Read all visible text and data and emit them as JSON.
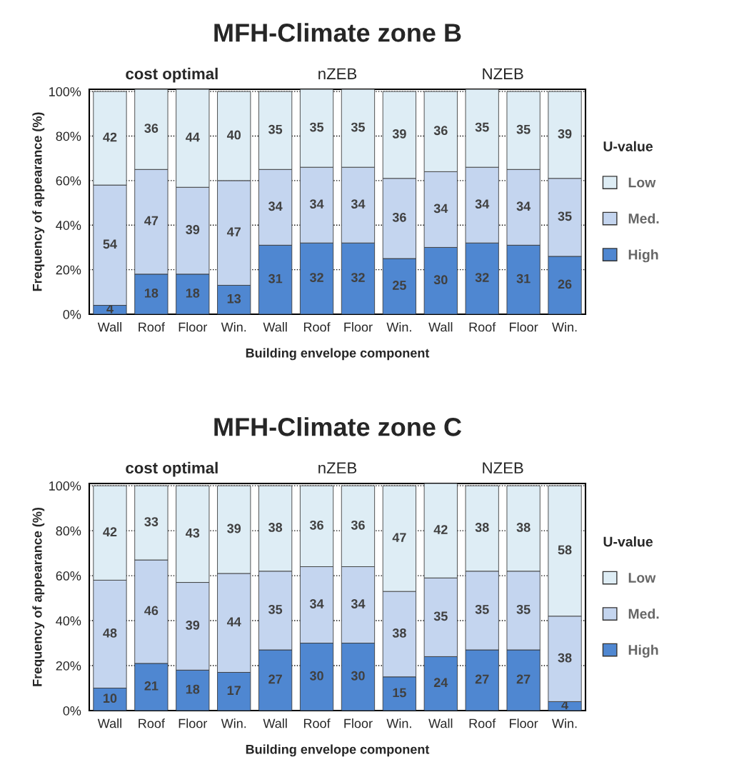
{
  "chart_data": [
    {
      "type": "bar",
      "title": "MFH-Climate zone B",
      "xlabel": "Building envelope component",
      "ylabel": "Frequency of appearance (%)",
      "legend_title": "U-value",
      "categories": [
        "Wall",
        "Roof",
        "Floor",
        "Win.",
        "Wall",
        "Roof",
        "Floor",
        "Win.",
        "Wall",
        "Roof",
        "Floor",
        "Win."
      ],
      "series": [
        {
          "name": "High",
          "color": "#4f87d1",
          "values": [
            4,
            18,
            18,
            13,
            31,
            32,
            32,
            25,
            30,
            32,
            31,
            26
          ]
        },
        {
          "name": "Med.",
          "color": "#c4d5ef",
          "values": [
            54,
            47,
            39,
            47,
            34,
            34,
            34,
            36,
            34,
            34,
            34,
            35
          ]
        },
        {
          "name": "Low",
          "color": "#deedf5",
          "values": [
            42,
            36,
            44,
            40,
            35,
            35,
            35,
            39,
            36,
            35,
            35,
            39
          ]
        }
      ],
      "stacked": true,
      "data_labels": true,
      "ylim": [
        0,
        101
      ],
      "yticks": [
        {
          "value": 0,
          "label": "0%"
        },
        {
          "value": 20,
          "label": "20%"
        },
        {
          "value": 40,
          "label": "40%"
        },
        {
          "value": 60,
          "label": "60%"
        },
        {
          "value": 80,
          "label": "80%"
        },
        {
          "value": 100,
          "label": "100%"
        }
      ],
      "grid": "y",
      "legend": "right",
      "annotations": [
        "cost optimal",
        "nZEB",
        "NZEB"
      ]
    },
    {
      "type": "bar",
      "title": "MFH-Climate zone C",
      "xlabel": "Building envelope component",
      "ylabel": "Frequency of appearance (%)",
      "legend_title": "U-value",
      "categories": [
        "Wall",
        "Roof",
        "Floor",
        "Win.",
        "Wall",
        "Roof",
        "Floor",
        "Win.",
        "Wall",
        "Roof",
        "Floor",
        "Win."
      ],
      "series": [
        {
          "name": "High",
          "color": "#4f87d1",
          "values": [
            10,
            21,
            18,
            17,
            27,
            30,
            30,
            15,
            24,
            27,
            27,
            4
          ]
        },
        {
          "name": "Med.",
          "color": "#c4d5ef",
          "values": [
            48,
            46,
            39,
            44,
            35,
            34,
            34,
            38,
            35,
            35,
            35,
            38
          ]
        },
        {
          "name": "Low",
          "color": "#deedf5",
          "values": [
            42,
            33,
            43,
            39,
            38,
            36,
            36,
            47,
            42,
            38,
            38,
            58
          ]
        }
      ],
      "stacked": true,
      "data_labels": true,
      "ylim": [
        0,
        101
      ],
      "yticks": [
        {
          "value": 0,
          "label": "0%"
        },
        {
          "value": 20,
          "label": "20%"
        },
        {
          "value": 40,
          "label": "40%"
        },
        {
          "value": 60,
          "label": "60%"
        },
        {
          "value": 80,
          "label": "80%"
        },
        {
          "value": 100,
          "label": "100%"
        }
      ],
      "grid": "y",
      "legend": "right",
      "annotations": [
        "cost optimal",
        "nZEB",
        "NZEB"
      ]
    }
  ]
}
